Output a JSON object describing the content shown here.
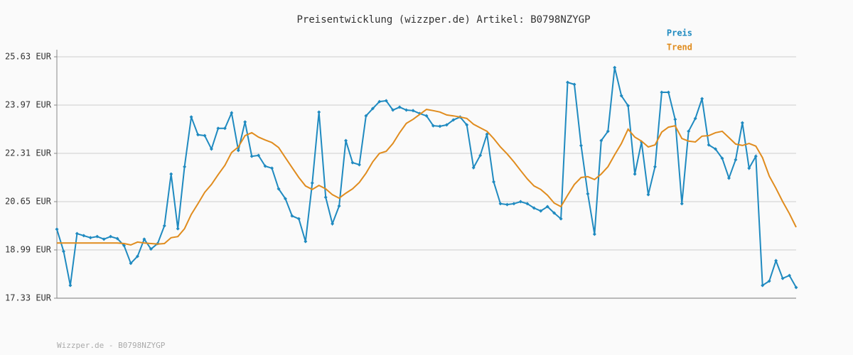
{
  "chart_data": {
    "type": "line",
    "title": "Preisentwicklung (wizzper.de) Artikel: B0798NZYGP",
    "source": "Wizzper.de - B0798NZYGP",
    "categories": [
      null,
      null,
      null,
      null,
      null,
      null,
      null,
      null,
      null,
      null,
      null,
      null,
      null,
      null,
      null,
      null,
      null,
      null,
      null,
      null,
      null,
      null,
      null,
      null,
      null,
      null,
      null,
      null,
      null,
      null,
      null,
      null,
      null,
      null,
      null,
      null,
      null,
      null,
      null,
      null,
      null,
      null,
      null,
      null,
      null,
      null,
      null,
      null,
      null,
      null,
      null,
      null,
      null,
      null,
      null,
      null,
      null,
      null,
      null,
      null,
      null,
      null,
      null,
      null,
      null,
      null,
      null,
      null,
      null,
      null,
      null,
      null,
      null,
      null,
      null,
      null,
      null,
      null,
      null,
      null,
      null,
      null,
      null,
      null,
      null,
      null,
      null,
      null,
      null,
      null,
      null,
      null,
      null,
      null,
      null,
      null,
      null,
      null,
      null,
      null,
      null,
      null,
      null,
      null,
      null,
      null,
      null,
      null,
      null,
      null,
      null
    ],
    "series": [
      {
        "name": "Preis",
        "color": "#1f8ac0",
        "markers": true,
        "values": [
          19.7,
          18.94,
          17.77,
          19.55,
          19.48,
          19.41,
          19.45,
          19.36,
          19.45,
          19.38,
          19.14,
          18.53,
          18.77,
          19.36,
          19.02,
          19.21,
          19.82,
          21.6,
          19.72,
          21.85,
          23.56,
          22.95,
          22.92,
          22.46,
          23.17,
          23.17,
          23.7,
          22.41,
          23.39,
          22.21,
          22.24,
          21.87,
          21.8,
          21.09,
          20.75,
          20.16,
          20.06,
          19.28,
          21.29,
          23.73,
          20.8,
          19.89,
          20.5,
          22.75,
          21.99,
          21.92,
          23.6,
          23.85,
          24.09,
          24.12,
          23.8,
          23.9,
          23.8,
          23.78,
          23.68,
          23.6,
          23.26,
          23.24,
          23.29,
          23.46,
          23.56,
          23.29,
          21.82,
          22.24,
          22.97,
          21.33,
          20.58,
          20.55,
          20.58,
          20.65,
          20.58,
          20.43,
          20.33,
          20.48,
          20.26,
          20.06,
          24.75,
          24.68,
          22.58,
          20.92,
          19.53,
          22.75,
          23.07,
          25.26,
          24.29,
          23.95,
          21.6,
          22.7,
          20.89,
          21.85,
          24.41,
          24.41,
          23.48,
          20.58,
          23.07,
          23.51,
          24.19,
          22.6,
          22.46,
          22.14,
          21.46,
          22.09,
          23.36,
          21.8,
          22.21,
          17.77,
          17.92,
          18.62,
          18.01,
          18.11,
          17.7
        ]
      },
      {
        "name": "Trend",
        "color": "#e08c1e",
        "markers": false,
        "values": [
          19.23,
          19.23,
          19.23,
          19.23,
          19.23,
          19.23,
          19.23,
          19.23,
          19.23,
          19.23,
          19.21,
          19.16,
          19.26,
          19.23,
          19.21,
          19.19,
          19.21,
          19.41,
          19.45,
          19.72,
          20.21,
          20.58,
          20.97,
          21.24,
          21.58,
          21.9,
          22.34,
          22.53,
          22.92,
          23.02,
          22.87,
          22.77,
          22.68,
          22.51,
          22.16,
          21.82,
          21.48,
          21.19,
          21.07,
          21.21,
          21.09,
          20.89,
          20.77,
          20.94,
          21.09,
          21.31,
          21.63,
          22.02,
          22.31,
          22.38,
          22.65,
          23.02,
          23.34,
          23.48,
          23.65,
          23.82,
          23.78,
          23.73,
          23.63,
          23.6,
          23.56,
          23.51,
          23.31,
          23.19,
          23.07,
          22.82,
          22.53,
          22.29,
          22.02,
          21.72,
          21.43,
          21.19,
          21.07,
          20.87,
          20.6,
          20.48,
          20.87,
          21.24,
          21.48,
          21.51,
          21.41,
          21.6,
          21.85,
          22.26,
          22.65,
          23.14,
          22.87,
          22.73,
          22.53,
          22.6,
          23.04,
          23.21,
          23.26,
          22.82,
          22.73,
          22.7,
          22.9,
          22.92,
          23.02,
          23.07,
          22.85,
          22.63,
          22.58,
          22.65,
          22.56,
          22.16,
          21.53,
          21.11,
          20.65,
          20.24,
          19.77
        ]
      }
    ],
    "ylim": [
      17.33,
      25.63
    ],
    "yticks": [
      {
        "value": 17.33,
        "label": "17.33 EUR"
      },
      {
        "value": 18.99,
        "label": "18.99 EUR"
      },
      {
        "value": 20.65,
        "label": "20.65 EUR"
      },
      {
        "value": 22.31,
        "label": "22.31 EUR"
      },
      {
        "value": 23.97,
        "label": "23.97 EUR"
      },
      {
        "value": 25.63,
        "label": "25.63 EUR"
      }
    ],
    "grid": true,
    "legend": "top-right"
  }
}
